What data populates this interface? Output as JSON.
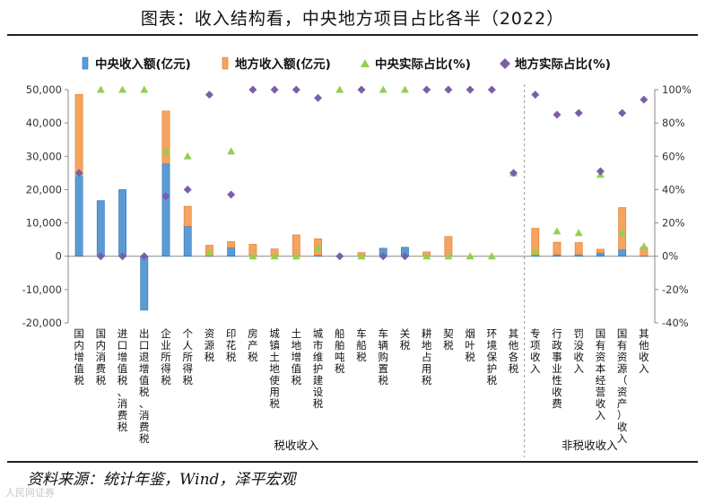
{
  "title": "图表：收入结构看，中央地方项目占比各半（2022）",
  "source": "资料来源：统计年鉴，Wind，泽平宏观",
  "watermark": "人民网证券",
  "colors": {
    "central": "#5b9bd5",
    "central_edge": "#2e75b6",
    "local": "#f4a460",
    "local_edge": "#e07b24",
    "central_pct": "#92d050",
    "local_pct": "#7b5ea7"
  },
  "chart_data": {
    "type": "bar",
    "title": "图表：收入结构看，中央地方项目占比各半（2022）",
    "stacked": true,
    "legend": {
      "position": "top",
      "entries": [
        "中央收入额(亿元)",
        "地方收入额(亿元)",
        "中央实际占比(%)",
        "地方实际占比(%)"
      ]
    },
    "y_left": {
      "range": [
        -20000,
        50000
      ],
      "ticks": [
        "-20,000",
        "-10,000",
        "0",
        "10,000",
        "20,000",
        "30,000",
        "40,000",
        "50,000"
      ],
      "tick_values": [
        -20000,
        -10000,
        0,
        10000,
        20000,
        30000,
        40000,
        50000
      ]
    },
    "y_right": {
      "range": [
        -40,
        100
      ],
      "ticks": [
        "-40%",
        "-20%",
        "0%",
        "20%",
        "40%",
        "60%",
        "80%",
        "100%"
      ],
      "tick_values": [
        -40,
        -20,
        0,
        20,
        40,
        60,
        80,
        100
      ]
    },
    "categories": [
      "国内增值税",
      "国内消费税",
      "进口增值税、消费税",
      "出口退增值税、消费税",
      "企业所得税",
      "个人所得税",
      "资源税",
      "印花税",
      "房产税",
      "城镇土地使用税",
      "土地增值税",
      "城市维护建设税",
      "船舶吨税",
      "车船税",
      "车辆购置税",
      "关税",
      "耕地占用税",
      "契税",
      "烟叶税",
      "环境保护税",
      "其他各税",
      "专项收入",
      "行政事业性收费",
      "罚没收入",
      "国有资本经营收入",
      "国有资源（资产）收入",
      "其他收入"
    ],
    "groups": [
      {
        "label": "税收收入",
        "from": 0,
        "to": 20
      },
      {
        "label": "非税收收入",
        "from": 21,
        "to": 26
      }
    ],
    "series": [
      {
        "name": "中央收入额(亿元)",
        "kind": "bar",
        "values": [
          24300,
          16700,
          20000,
          -16200,
          27800,
          9000,
          100,
          2600,
          0,
          0,
          0,
          250,
          0,
          0,
          2400,
          2700,
          0,
          0,
          0,
          0,
          0,
          300,
          500,
          500,
          1000,
          2000,
          100
        ]
      },
      {
        "name": "地方收入额(亿元)",
        "kind": "bar",
        "values": [
          24300,
          0,
          0,
          0,
          15800,
          6000,
          3200,
          1800,
          3600,
          2200,
          6400,
          5000,
          0,
          1100,
          0,
          0,
          1300,
          5900,
          0,
          0,
          0,
          8100,
          3700,
          3600,
          1100,
          12600,
          2600
        ]
      },
      {
        "name": "中央实际占比(%)",
        "kind": "marker",
        "values": [
          50,
          100,
          100,
          100,
          63,
          60,
          2,
          63,
          0,
          0,
          0,
          5,
          100,
          0,
          100,
          100,
          0,
          0,
          0,
          0,
          50,
          3,
          15,
          14,
          49,
          14,
          6
        ]
      },
      {
        "name": "地方实际占比(%)",
        "kind": "marker",
        "values": [
          50,
          0,
          0,
          0,
          36,
          40,
          97,
          37,
          100,
          100,
          100,
          95,
          0,
          100,
          0,
          0,
          100,
          100,
          100,
          100,
          50,
          97,
          85,
          86,
          51,
          86,
          94
        ]
      }
    ]
  }
}
